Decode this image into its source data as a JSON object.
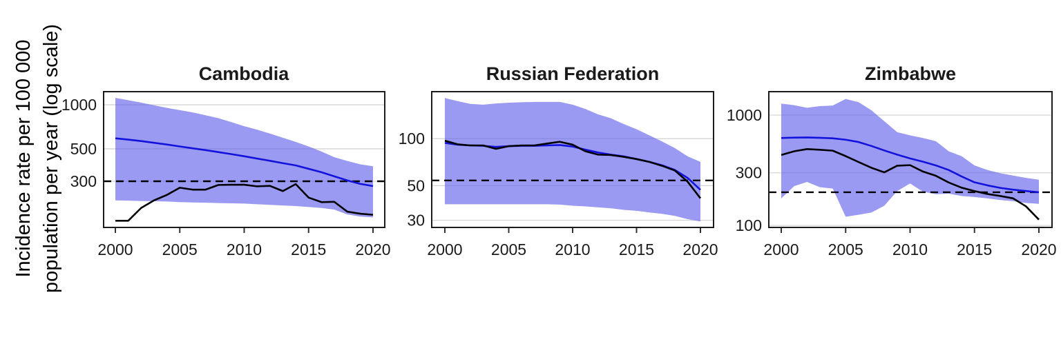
{
  "figure": {
    "ylabel_line1": "Incidence rate per 100 000",
    "ylabel_line2": "population per year (log scale)",
    "colors": {
      "band_fill": "rgba(100,100,235,0.65)",
      "blue_line": "#1212dd",
      "black_line": "#000000",
      "dashed_line": "#000000",
      "gridline": "#d4d4d4",
      "panel_border": "#1b1b1b",
      "tick_text": "#1a1a1a"
    }
  },
  "chart_data": [
    {
      "type": "line",
      "title": "Cambodia",
      "log_scale": true,
      "x": [
        2000,
        2001,
        2002,
        2003,
        2004,
        2005,
        2006,
        2007,
        2008,
        2009,
        2010,
        2011,
        2012,
        2013,
        2014,
        2015,
        2016,
        2017,
        2018,
        2019,
        2020
      ],
      "xticks": [
        2000,
        2005,
        2010,
        2015,
        2020
      ],
      "yticks": [
        1000,
        500,
        300
      ],
      "ylim": [
        145,
        1230
      ],
      "dashed_reference": 300,
      "band": {
        "name": "confidence-band",
        "upper": [
          1115,
          1076,
          1035,
          993,
          953,
          920,
          887,
          848,
          810,
          762,
          714,
          676,
          636,
          595,
          558,
          519,
          479,
          438,
          413,
          392,
          380
        ],
        "lower": [
          222,
          221,
          220,
          219,
          218,
          216,
          215,
          214,
          213,
          212,
          211,
          209,
          207,
          205,
          203,
          200,
          197,
          192,
          178,
          172,
          170
        ]
      },
      "series": [
        {
          "name": "blue-line",
          "values": [
            590,
            578,
            565,
            550,
            535,
            519,
            504,
            490,
            475,
            460,
            445,
            429,
            414,
            399,
            385,
            365,
            346,
            324,
            304,
            288,
            278
          ]
        },
        {
          "name": "black-line",
          "values": [
            161,
            161,
            197,
            222,
            242,
            271,
            263,
            263,
            283,
            284,
            284,
            277,
            279,
            257,
            287,
            232,
            216,
            217,
            186,
            180,
            177
          ]
        }
      ]
    },
    {
      "type": "line",
      "title": "Russian Federation",
      "log_scale": true,
      "x": [
        2000,
        2001,
        2002,
        2003,
        2004,
        2005,
        2006,
        2007,
        2008,
        2009,
        2010,
        2011,
        2012,
        2013,
        2014,
        2015,
        2016,
        2017,
        2018,
        2019,
        2020
      ],
      "xticks": [
        2000,
        2005,
        2010,
        2015,
        2020
      ],
      "yticks": [
        100,
        50,
        30
      ],
      "ylim": [
        27,
        200
      ],
      "dashed_reference": 54,
      "band": {
        "name": "confidence-band",
        "upper": [
          182,
          174,
          167,
          165,
          168,
          170,
          171,
          172,
          172,
          172,
          165,
          155,
          143,
          135,
          124,
          115,
          105,
          96,
          87,
          77,
          71
        ],
        "lower": [
          38,
          38,
          38,
          38,
          38,
          38,
          38,
          38,
          38,
          37.8,
          37.2,
          36.8,
          36.3,
          35.8,
          35,
          34.5,
          33.7,
          33,
          32,
          30.5,
          29.5
        ]
      },
      "series": [
        {
          "name": "blue-line",
          "values": [
            94,
            91.5,
            90.5,
            90,
            88.5,
            89.5,
            90,
            90,
            90.5,
            91,
            89,
            85,
            81.5,
            79,
            77,
            74,
            71,
            67.5,
            63,
            56,
            47
          ]
        },
        {
          "name": "black-line",
          "values": [
            97,
            92,
            90.5,
            90.5,
            86,
            89.5,
            90.5,
            90.5,
            93,
            95.5,
            91.5,
            83,
            79,
            78.5,
            76.5,
            74,
            71,
            67,
            62.5,
            53,
            41.5
          ]
        }
      ]
    },
    {
      "type": "line",
      "title": "Zimbabwe",
      "log_scale": true,
      "x": [
        2000,
        2001,
        2002,
        2003,
        2004,
        2005,
        2006,
        2007,
        2008,
        2009,
        2010,
        2011,
        2012,
        2013,
        2014,
        2015,
        2016,
        2017,
        2018,
        2019,
        2020
      ],
      "xticks": [
        2000,
        2005,
        2010,
        2015,
        2020
      ],
      "yticks": [
        1000,
        300,
        100
      ],
      "ylim": [
        96,
        1630
      ],
      "dashed_reference": 200,
      "band": {
        "name": "confidence-band",
        "upper": [
          1270,
          1230,
          1165,
          1205,
          1220,
          1400,
          1310,
          1105,
          880,
          700,
          655,
          620,
          580,
          470,
          424,
          350,
          318,
          297,
          283,
          270,
          260
        ],
        "lower": [
          176,
          227,
          248,
          222,
          216,
          120,
          125,
          131,
          151,
          205,
          240,
          202,
          192,
          194,
          185,
          181,
          176,
          170,
          166,
          160,
          157
        ]
      },
      "series": [
        {
          "name": "blue-line",
          "values": [
            620,
            625,
            627,
            623,
            616,
            598,
            570,
            525,
            478,
            438,
            405,
            378,
            350,
            318,
            278,
            246,
            231,
            219,
            211,
            205,
            200
          ]
        },
        {
          "name": "black-line",
          "values": [
            435,
            470,
            492,
            485,
            476,
            425,
            376,
            333,
            303,
            348,
            352,
            308,
            282,
            245,
            220,
            205,
            193,
            185,
            176,
            149,
            113
          ]
        }
      ]
    }
  ]
}
